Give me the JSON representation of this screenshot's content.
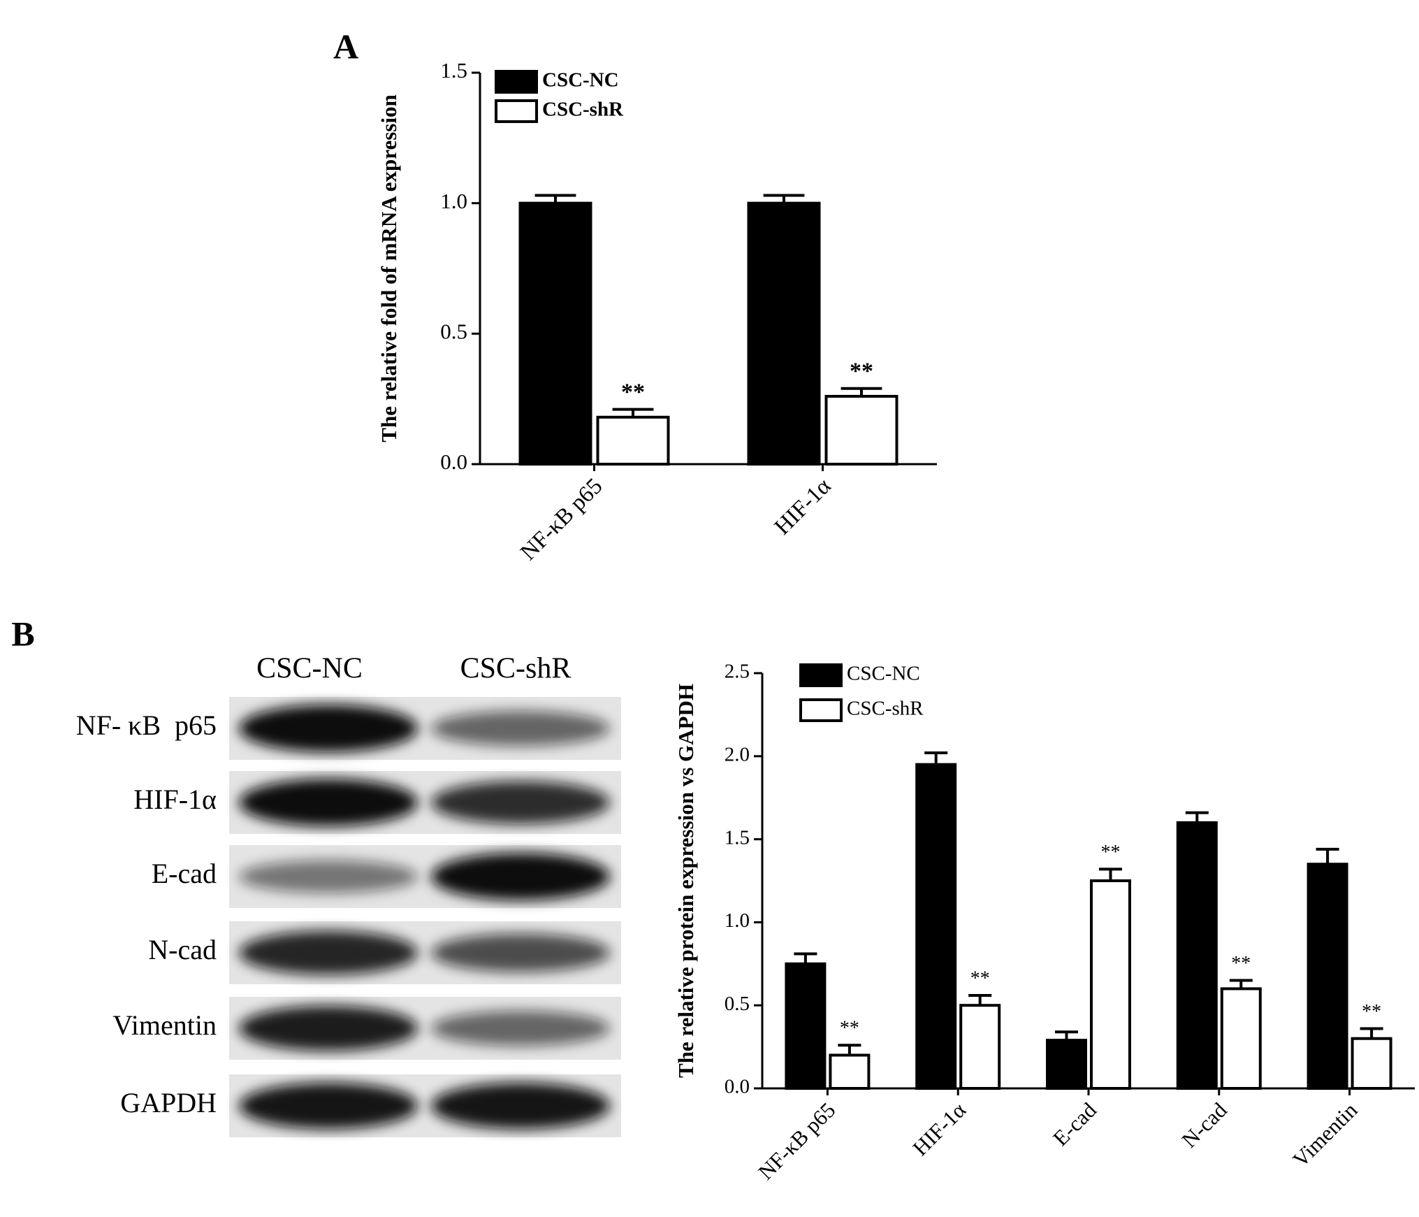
{
  "panels": {
    "a": "A",
    "b": "B"
  },
  "blot": {
    "columns": [
      "CSC-NC",
      "CSC-shR"
    ],
    "rows": [
      "NF- κB  p65",
      "HIF-1α",
      "E-cad",
      "N-cad",
      "Vimentin",
      "GAPDH"
    ]
  },
  "chart_data": [
    {
      "type": "bar",
      "y_label": "The relative fold of mRNA expression",
      "categories": [
        "NF-κB p65",
        "HIF-1α"
      ],
      "series": [
        {
          "name": "CSC-NC",
          "color": "#000000",
          "values": [
            1.0,
            1.0
          ],
          "errors": [
            0.03,
            0.03
          ]
        },
        {
          "name": "CSC-shR",
          "color": "#ffffff",
          "values": [
            0.18,
            0.26
          ],
          "errors": [
            0.03,
            0.03
          ],
          "annotations": [
            "**",
            "**"
          ]
        }
      ],
      "ylim": [
        0,
        1.5
      ],
      "yticks": [
        {
          "value": 0,
          "label": "0.0"
        },
        {
          "value": 0.5,
          "label": "0.5"
        },
        {
          "value": 1,
          "label": "1.0"
        },
        {
          "value": 1.5,
          "label": "1.5"
        }
      ],
      "legend": "upper left",
      "grid": false
    },
    {
      "type": "bar",
      "y_label": "The relative protein expression vs GAPDH",
      "categories": [
        "NF-κB p65",
        "HIF-1α",
        "E-cad",
        "N-cad",
        "Vimentin"
      ],
      "series": [
        {
          "name": "CSC-NC",
          "color": "#000000",
          "values": [
            0.75,
            1.95,
            0.29,
            1.6,
            1.35
          ],
          "errors": [
            0.06,
            0.07,
            0.05,
            0.06,
            0.09
          ]
        },
        {
          "name": "CSC-shR",
          "color": "#ffffff",
          "values": [
            0.2,
            0.5,
            1.25,
            0.6,
            0.3
          ],
          "errors": [
            0.06,
            0.06,
            0.07,
            0.05,
            0.06
          ],
          "annotations": [
            "**",
            "**",
            "**",
            "**",
            "**"
          ]
        }
      ],
      "ylim": [
        0,
        2.5
      ],
      "yticks": [
        {
          "value": 0,
          "label": "0.0"
        },
        {
          "value": 0.5,
          "label": "0.5"
        },
        {
          "value": 1,
          "label": "1.0"
        },
        {
          "value": 1.5,
          "label": "1.5"
        },
        {
          "value": 2,
          "label": "2.0"
        },
        {
          "value": 2.5,
          "label": "2.5"
        }
      ],
      "legend": "upper left",
      "grid": false
    }
  ]
}
